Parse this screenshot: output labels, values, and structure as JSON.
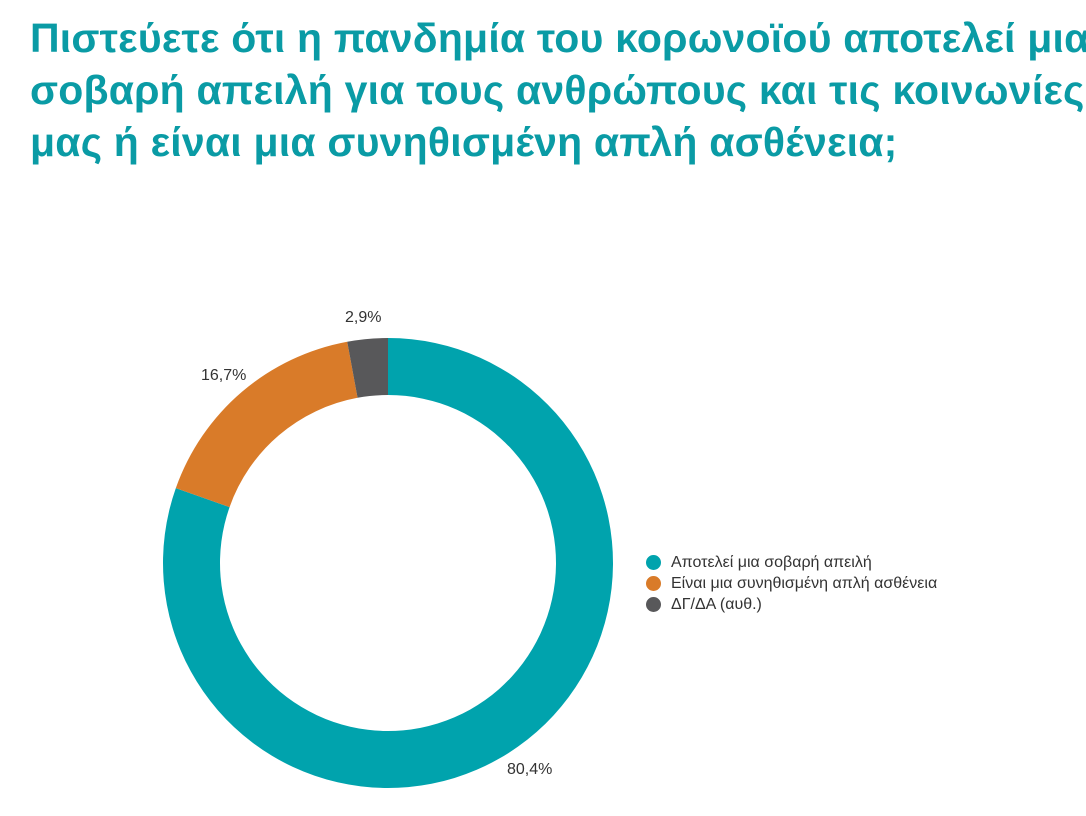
{
  "title_lines": [
    "Πιστεύετε ότι η πανδημία του κορωνοϊού αποτελεί μια",
    "σοβαρή απειλή για τους ανθρώπους και τις κοινωνίες",
    "μας ή είναι μια συνηθισμένη απλή ασθένεια;"
  ],
  "labels": {
    "slice_0": "80,4%",
    "slice_1": "16,7%",
    "slice_2": "2,9%"
  },
  "legend": [
    {
      "label": "Αποτελεί μια σοβαρή απειλή",
      "color": "#00a3ad"
    },
    {
      "label": "Είναι μια συνηθισμένη απλή ασθένεια",
      "color": "#d97b29"
    },
    {
      "label": "ΔΓ/ΔΑ (αυθ.)",
      "color": "#58585a"
    }
  ],
  "chart_data": {
    "type": "pie",
    "variant": "donut",
    "title": "Πιστεύετε ότι η πανδημία του κορωνοϊού αποτελεί μια σοβαρή απειλή για τους ανθρώπους και τις κοινωνίες μας ή είναι μια συνηθισμένη απλή ασθένεια;",
    "categories": [
      "Αποτελεί μια σοβαρή απειλή",
      "Είναι μια συνηθισμένη απλή ασθένεια",
      "ΔΓ/ΔΑ (αυθ.)"
    ],
    "values": [
      80.4,
      16.7,
      2.9
    ],
    "value_labels": [
      "80,4%",
      "16,7%",
      "2,9%"
    ],
    "colors": [
      "#00a3ad",
      "#d97b29",
      "#58585a"
    ],
    "start_angle_deg": 0,
    "direction": "clockwise",
    "legend_position": "right"
  }
}
